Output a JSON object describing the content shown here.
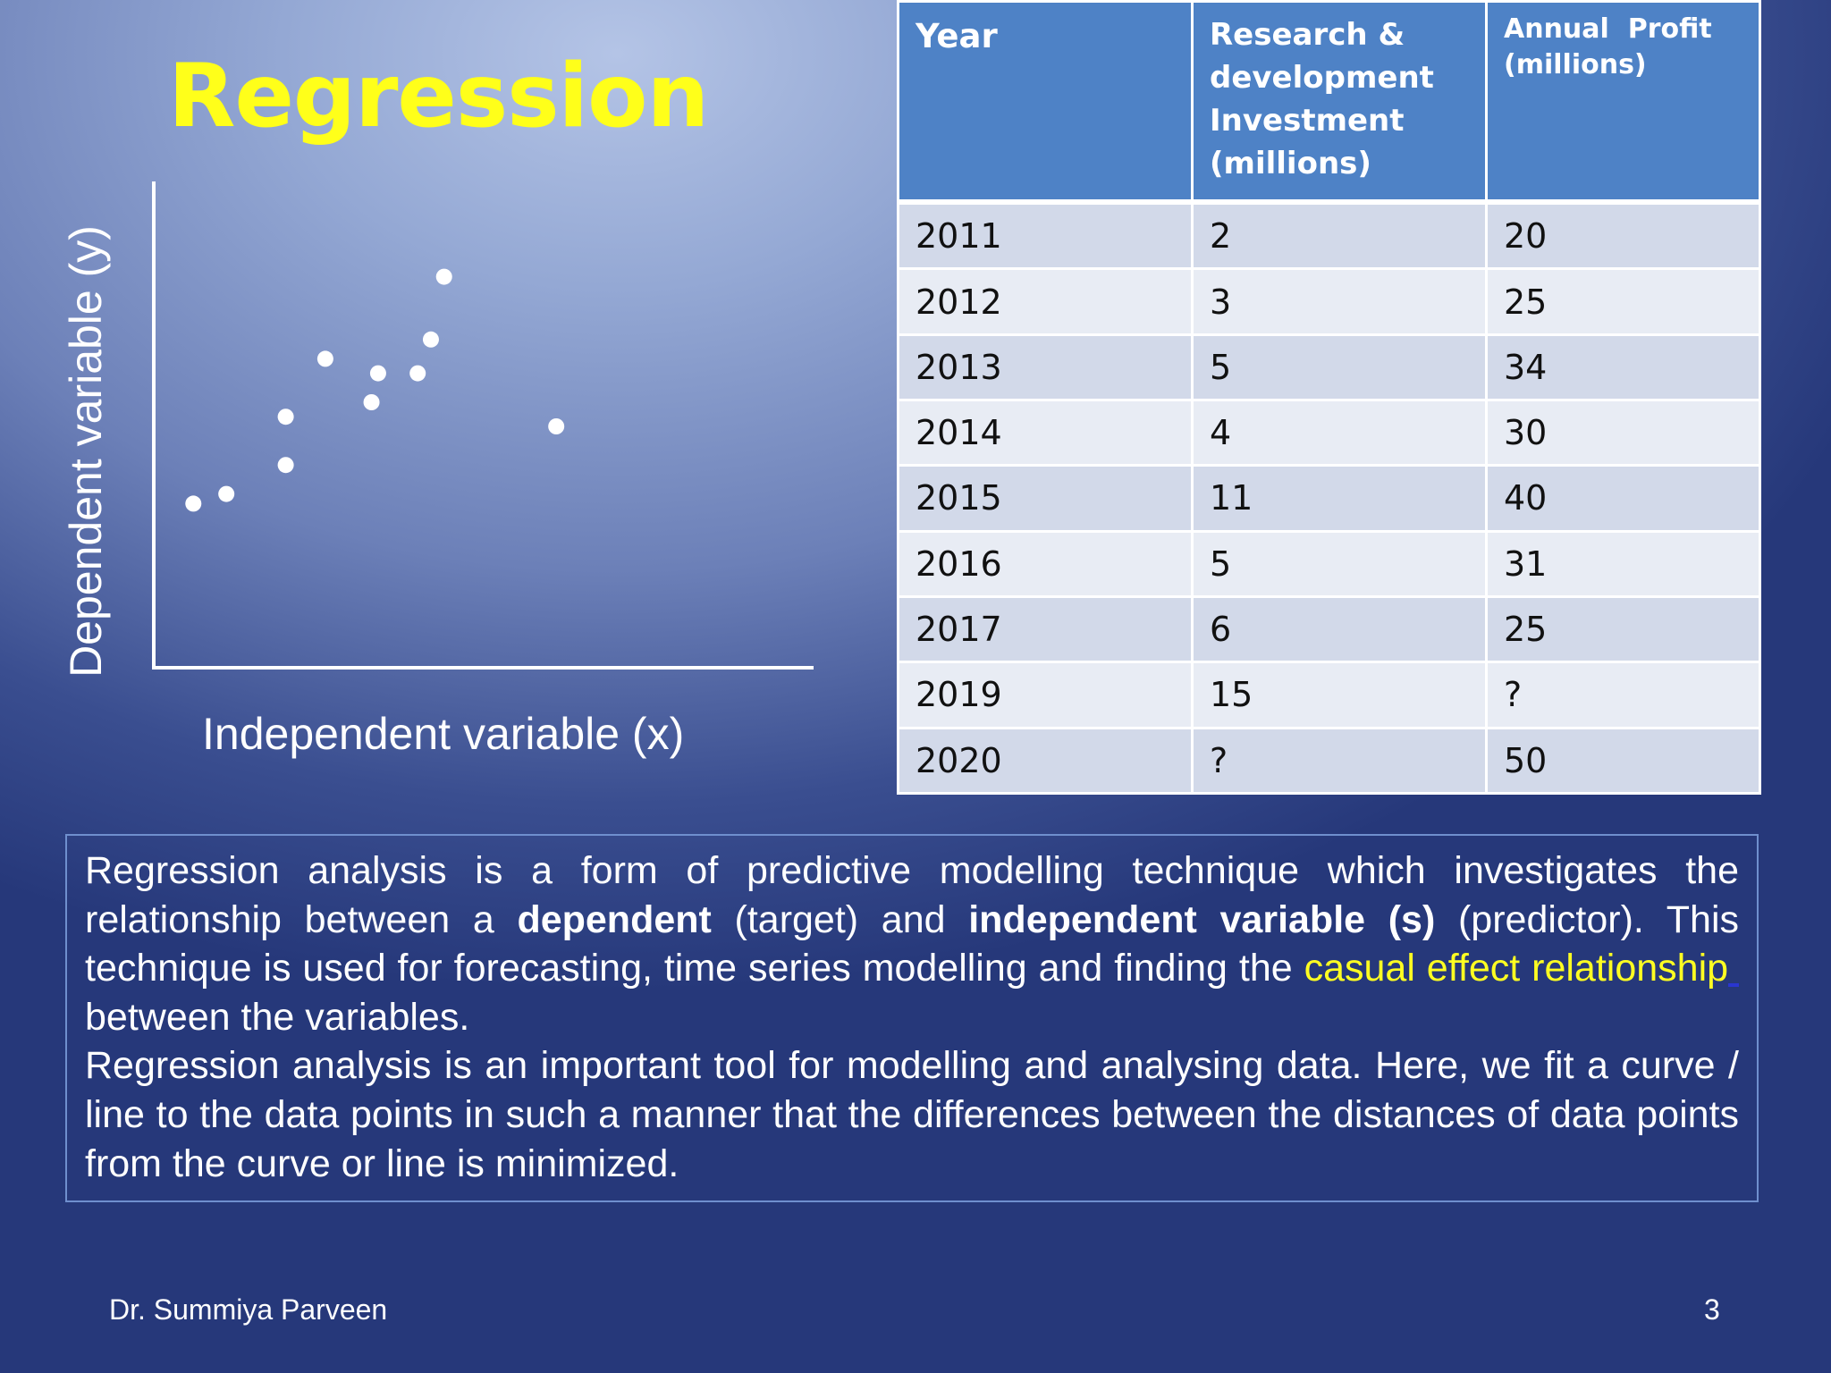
{
  "title": "Regression",
  "chart_data": {
    "type": "scatter",
    "xlabel": "Independent variable (x)",
    "ylabel": "Dependent variable (y)",
    "xlim": [
      0,
      10
    ],
    "ylim": [
      0,
      10
    ],
    "grid": false,
    "points": [
      {
        "x": 0.6,
        "y": 3.4
      },
      {
        "x": 1.1,
        "y": 3.6
      },
      {
        "x": 2.0,
        "y": 4.2
      },
      {
        "x": 2.0,
        "y": 5.2
      },
      {
        "x": 2.6,
        "y": 6.4
      },
      {
        "x": 3.3,
        "y": 5.5
      },
      {
        "x": 3.4,
        "y": 6.1
      },
      {
        "x": 4.2,
        "y": 6.8
      },
      {
        "x": 4.0,
        "y": 6.1
      },
      {
        "x": 4.4,
        "y": 8.1
      },
      {
        "x": 6.1,
        "y": 5.0
      }
    ],
    "colors": {
      "points": "#ffffff",
      "axes": "#ffffff"
    }
  },
  "table": {
    "headers": [
      "Year",
      "Research & development Investment (millions)",
      "Annual  Profit\n(millions)"
    ],
    "rows": [
      [
        "2011",
        "2",
        "20"
      ],
      [
        "2012",
        "3",
        "25"
      ],
      [
        "2013",
        "5",
        "34"
      ],
      [
        "2014",
        "4",
        "30"
      ],
      [
        "2015",
        "11",
        "40"
      ],
      [
        "2016",
        "5",
        "31"
      ],
      [
        "2017",
        "6",
        "25"
      ],
      [
        "2019",
        "15",
        "?"
      ],
      [
        "2020",
        "?",
        "50"
      ]
    ]
  },
  "paragraph1": {
    "t1": "Regression analysis is a form of predictive modelling technique which investigates the relationship between a ",
    "b1": "dependent",
    "t2": " (target) and ",
    "b2": "independent variable (s)",
    "t3": " (predictor). This technique is used for forecasting, time series modelling and finding the ",
    "highlight": "casual effect relationship",
    "t4": " between the variables."
  },
  "paragraph2": "Regression analysis is an important tool for modelling and analysing data. Here, we fit a curve / line to the data points in such a manner that the differences between the distances of data points from the curve or line is minimized.",
  "footer": {
    "author": "Dr. Summiya Parveen",
    "page": "3"
  },
  "colors": {
    "title": "#ffff1a",
    "highlight": "#ffff22",
    "table_header": "#4e82c6",
    "text_box_border": "#6f8fce"
  }
}
